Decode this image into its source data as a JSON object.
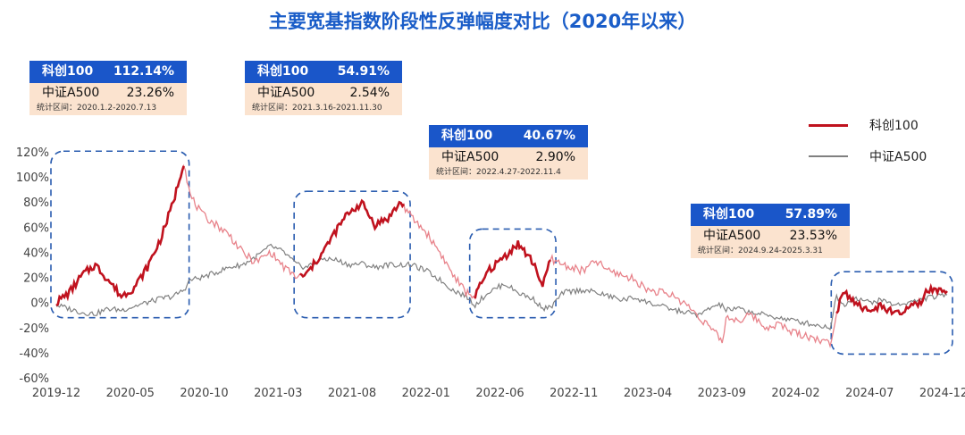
{
  "chart_data": {
    "type": "line",
    "title": "主要宽基指数阶段性反弹幅度对比（2020年以来）",
    "ylim": [
      -60,
      120
    ],
    "y_ticks": [
      "-60%",
      "-40%",
      "-20%",
      "0%",
      "20%",
      "40%",
      "60%",
      "80%",
      "100%",
      "120%"
    ],
    "x_ticks": [
      "2019-12",
      "2020-05",
      "2020-10",
      "2021-03",
      "2021-08",
      "2022-01",
      "2022-06",
      "2022-11",
      "2023-04",
      "2023-09",
      "2024-02",
      "2024-07",
      "2024-12"
    ],
    "series": [
      {
        "name": "科创100",
        "color": "#c0121e",
        "points": [
          [
            0,
            0
          ],
          [
            1,
            8
          ],
          [
            2,
            22
          ],
          [
            3,
            30
          ],
          [
            4,
            18
          ],
          [
            5,
            5
          ],
          [
            6,
            12
          ],
          [
            7,
            28
          ],
          [
            8,
            50
          ],
          [
            9,
            80
          ],
          [
            9.8,
            112
          ],
          [
            10.3,
            85
          ],
          [
            11.2,
            70
          ],
          [
            12.3,
            62
          ],
          [
            13.3,
            54
          ],
          [
            14.3,
            40
          ],
          [
            15.3,
            32
          ],
          [
            16.5,
            40
          ],
          [
            17.5,
            28
          ],
          [
            18.5,
            20
          ],
          [
            19.2,
            22
          ],
          [
            20.5,
            40
          ],
          [
            21.5,
            57
          ],
          [
            22.5,
            72
          ],
          [
            23.5,
            79
          ],
          [
            24.5,
            62
          ],
          [
            25.5,
            67
          ],
          [
            26.5,
            80
          ],
          [
            27.3,
            68
          ],
          [
            28.5,
            55
          ],
          [
            29.5,
            40
          ],
          [
            30.5,
            22
          ],
          [
            31.5,
            8
          ],
          [
            32.2,
            5
          ],
          [
            33.2,
            25
          ],
          [
            34.5,
            37
          ],
          [
            35.5,
            47
          ],
          [
            36.8,
            30
          ],
          [
            37.4,
            12
          ],
          [
            38,
            35
          ],
          [
            39,
            30
          ],
          [
            40.5,
            25
          ],
          [
            41.5,
            33
          ],
          [
            42.5,
            25
          ],
          [
            43.5,
            22
          ],
          [
            44.5,
            18
          ],
          [
            45.5,
            10
          ],
          [
            46.5,
            8
          ],
          [
            47.5,
            5
          ],
          [
            48.5,
            -2
          ],
          [
            49.5,
            -12
          ],
          [
            50.5,
            -22
          ],
          [
            51.2,
            -32
          ],
          [
            51.5,
            -12
          ],
          [
            52.5,
            -14
          ],
          [
            53.5,
            -10
          ],
          [
            54.5,
            -20
          ],
          [
            55.5,
            -17
          ],
          [
            56.5,
            -23
          ],
          [
            57.5,
            -26
          ],
          [
            58.5,
            -29
          ],
          [
            59.5,
            -33
          ],
          [
            60,
            -8
          ],
          [
            60.5,
            10
          ],
          [
            61.5,
            0
          ],
          [
            62.5,
            -8
          ],
          [
            63.5,
            -2
          ],
          [
            64.5,
            -10
          ],
          [
            65.5,
            -5
          ],
          [
            66.5,
            0
          ],
          [
            67,
            10
          ],
          [
            68,
            8
          ],
          [
            68.5,
            9
          ]
        ],
        "highlight_segments": [
          [
            0,
            9.8
          ],
          [
            18.7,
            26.8
          ],
          [
            32.2,
            38
          ],
          [
            60,
            68.5
          ]
        ]
      },
      {
        "name": "中证A500",
        "color": "#808080",
        "points": [
          [
            0,
            -2
          ],
          [
            1,
            -5
          ],
          [
            2,
            -8
          ],
          [
            3,
            -9
          ],
          [
            4,
            -5
          ],
          [
            5,
            -6
          ],
          [
            6,
            -3
          ],
          [
            7,
            0
          ],
          [
            8,
            3
          ],
          [
            9,
            5
          ],
          [
            9.8,
            10
          ],
          [
            10.3,
            18
          ],
          [
            11.2,
            20
          ],
          [
            12.3,
            24
          ],
          [
            13.3,
            28
          ],
          [
            14.3,
            30
          ],
          [
            15.3,
            36
          ],
          [
            16.5,
            45
          ],
          [
            17.5,
            40
          ],
          [
            18.5,
            30
          ],
          [
            19.2,
            28
          ],
          [
            20.5,
            35
          ],
          [
            21.5,
            34
          ],
          [
            22.5,
            30
          ],
          [
            23.5,
            31
          ],
          [
            24.5,
            28
          ],
          [
            25.5,
            30
          ],
          [
            26.5,
            30
          ],
          [
            27.3,
            30
          ],
          [
            28.5,
            25
          ],
          [
            29.5,
            18
          ],
          [
            30.5,
            10
          ],
          [
            31.5,
            5
          ],
          [
            32.2,
            -2
          ],
          [
            33.2,
            8
          ],
          [
            34.5,
            15
          ],
          [
            35.5,
            8
          ],
          [
            36.8,
            2
          ],
          [
            37.4,
            -5
          ],
          [
            38,
            -4
          ],
          [
            39,
            8
          ],
          [
            40.5,
            10
          ],
          [
            41.5,
            8
          ],
          [
            42.5,
            5
          ],
          [
            43.5,
            2
          ],
          [
            44.5,
            4
          ],
          [
            45.5,
            0
          ],
          [
            46.5,
            -3
          ],
          [
            47.5,
            -6
          ],
          [
            48.5,
            -8
          ],
          [
            49.5,
            -10
          ],
          [
            50.5,
            -3
          ],
          [
            51.2,
            -2
          ],
          [
            51.5,
            -6
          ],
          [
            52.5,
            -5
          ],
          [
            53.5,
            -8
          ],
          [
            54.5,
            -10
          ],
          [
            55.5,
            -12
          ],
          [
            56.5,
            -14
          ],
          [
            57.5,
            -16
          ],
          [
            58.5,
            -18
          ],
          [
            59.5,
            -20
          ],
          [
            60,
            5
          ],
          [
            60.5,
            -2
          ],
          [
            61.5,
            4
          ],
          [
            62.5,
            0
          ],
          [
            63.5,
            2
          ],
          [
            64.5,
            -2
          ],
          [
            65.5,
            0
          ],
          [
            66.5,
            2
          ],
          [
            67,
            4
          ],
          [
            68,
            5
          ],
          [
            68.5,
            6
          ]
        ]
      }
    ],
    "callouts": [
      {
        "k1": "科创100",
        "v1": "112.14%",
        "k2": "中证A500",
        "v2": "23.26%",
        "period": "统计区间：2020.1.2-2020.7.13"
      },
      {
        "k1": "科创100",
        "v1": "54.91%",
        "k2": "中证A500",
        "v2": "2.54%",
        "period": "统计区间：2021.3.16-2021.11.30"
      },
      {
        "k1": "科创100",
        "v1": "40.67%",
        "k2": "中证A500",
        "v2": "2.90%",
        "period": "统计区间：2022.4.27-2022.11.4"
      },
      {
        "k1": "科创100",
        "v1": "57.89%",
        "k2": "中证A500",
        "v2": "23.53%",
        "period": "统计区间：2024.9.24-2025.3.31"
      }
    ],
    "legend": [
      "科创100",
      "中证A500"
    ]
  }
}
